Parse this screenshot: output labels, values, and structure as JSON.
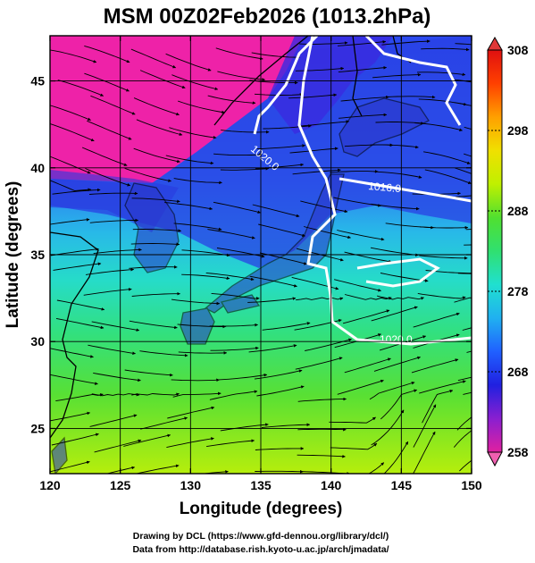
{
  "title": "MSM 00Z02Feb2026 (1013.2hPa)",
  "xlabel": "Longitude (degrees)",
  "ylabel": "Latitude  (degrees)",
  "xticks": [
    120,
    125,
    130,
    135,
    140,
    145,
    150
  ],
  "yticks": [
    25,
    30,
    35,
    40,
    45
  ],
  "xlim": [
    120,
    150
  ],
  "ylim": [
    22.4,
    47.6
  ],
  "colorbar": {
    "ticks": [
      258,
      268,
      278,
      288,
      298,
      308
    ],
    "range": [
      258,
      308
    ],
    "colors": [
      "#e020a0",
      "#8a1fd0",
      "#2020e0",
      "#2060ff",
      "#20b0f0",
      "#20e0d0",
      "#30e070",
      "#50e030",
      "#c0f000",
      "#f0e000",
      "#ffa000",
      "#ff4000",
      "#e01010"
    ]
  },
  "contours": {
    "labels": [
      "1020.0",
      "1016.0",
      "1020.0"
    ],
    "color": "#ffffff"
  },
  "credits": {
    "line1": "Drawing by DCL (https://www.gfd-dennou.org/library/dcl/)",
    "line2": "Data from http://database.rish.kyoto-u.ac.jp/arch/jmadata/"
  },
  "icons": {
    "streamlines": "wind-streamline-icon",
    "coastline": "coastline-icon"
  }
}
